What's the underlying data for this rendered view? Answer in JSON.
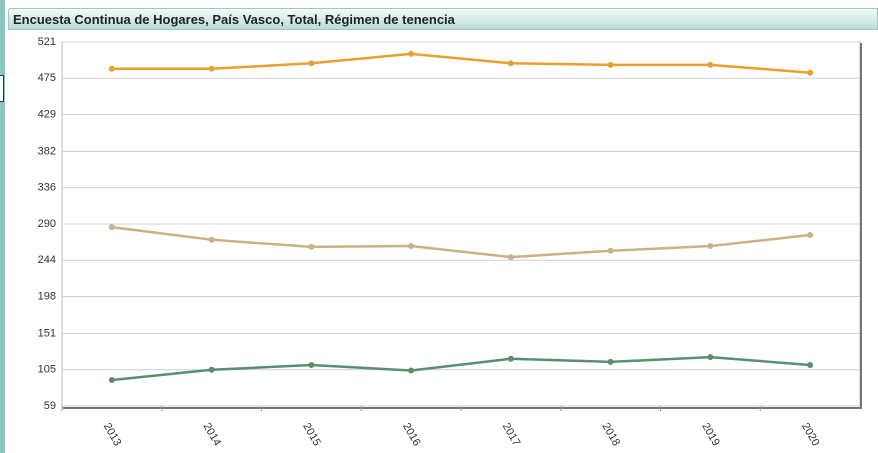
{
  "chart_data": {
    "type": "line",
    "title": "Encuesta Continua de Hogares, País Vasco, Total, Régimen de tenencia",
    "categories": [
      "2013",
      "2014",
      "2015",
      "2016",
      "2017",
      "2018",
      "2019",
      "2020"
    ],
    "series": [
      {
        "color": "#e8a030",
        "values": [
          487,
          487,
          494,
          506,
          494,
          492,
          492,
          482
        ]
      },
      {
        "color": "#c9b283",
        "values": [
          286,
          270,
          261,
          262,
          248,
          256,
          262,
          276
        ]
      },
      {
        "color": "#5a8f6e",
        "values": [
          92,
          105,
          111,
          104,
          119,
          115,
          121,
          111
        ]
      }
    ],
    "ylim": [
      59,
      521
    ],
    "yticks": [
      59,
      105,
      151,
      198,
      244,
      290,
      336,
      382,
      429,
      475,
      521
    ],
    "grid": true
  }
}
